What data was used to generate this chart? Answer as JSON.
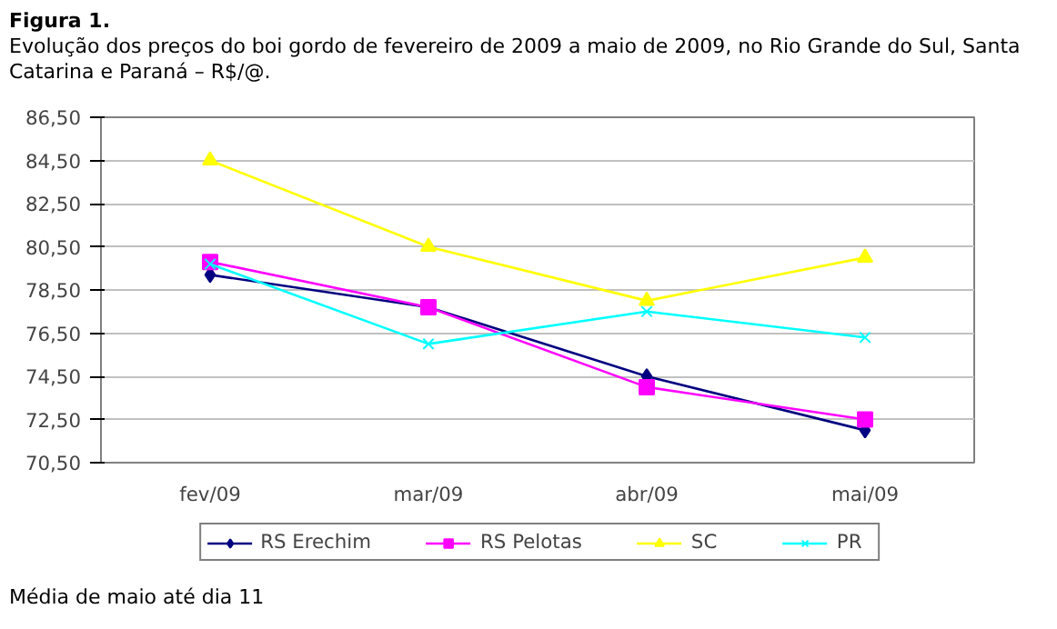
{
  "chart_data": {
    "type": "line",
    "title": "Figura 1.",
    "subtitle": "Evolução dos preços do boi gordo de fevereiro de 2009 a maio de 2009, no Rio Grande do Sul, Santa Catarina e Paraná – R$/@.",
    "categories": [
      "fev/09",
      "mar/09",
      "abr/09",
      "mai/09"
    ],
    "series": [
      {
        "name": "RS Erechim",
        "color": "#000080",
        "marker": "diamond",
        "values": [
          79.2,
          77.7,
          74.5,
          72.0
        ]
      },
      {
        "name": "RS Pelotas",
        "color": "#ff00ff",
        "marker": "square",
        "values": [
          79.8,
          77.7,
          74.0,
          72.5
        ]
      },
      {
        "name": "SC",
        "color": "#ffff00",
        "marker": "triangle",
        "values": [
          84.5,
          80.5,
          78.0,
          80.0
        ]
      },
      {
        "name": "PR",
        "color": "#00ffff",
        "marker": "cross",
        "values": [
          79.7,
          76.0,
          77.5,
          76.3
        ]
      }
    ],
    "ylim": [
      70.5,
      86.5
    ],
    "yticks": [
      {
        "value": 70.5,
        "label": "70,50"
      },
      {
        "value": 72.5,
        "label": "72,50"
      },
      {
        "value": 74.5,
        "label": "74,50"
      },
      {
        "value": 76.5,
        "label": "76,50"
      },
      {
        "value": 78.5,
        "label": "78,50"
      },
      {
        "value": 80.5,
        "label": "80,50"
      },
      {
        "value": 82.5,
        "label": "82,50"
      },
      {
        "value": 84.5,
        "label": "84,50"
      },
      {
        "value": 86.5,
        "label": "86,50"
      }
    ],
    "grid": "y",
    "legend": "bottom",
    "line_style": "solid",
    "annotations": [
      "Média de maio até dia 11"
    ]
  }
}
